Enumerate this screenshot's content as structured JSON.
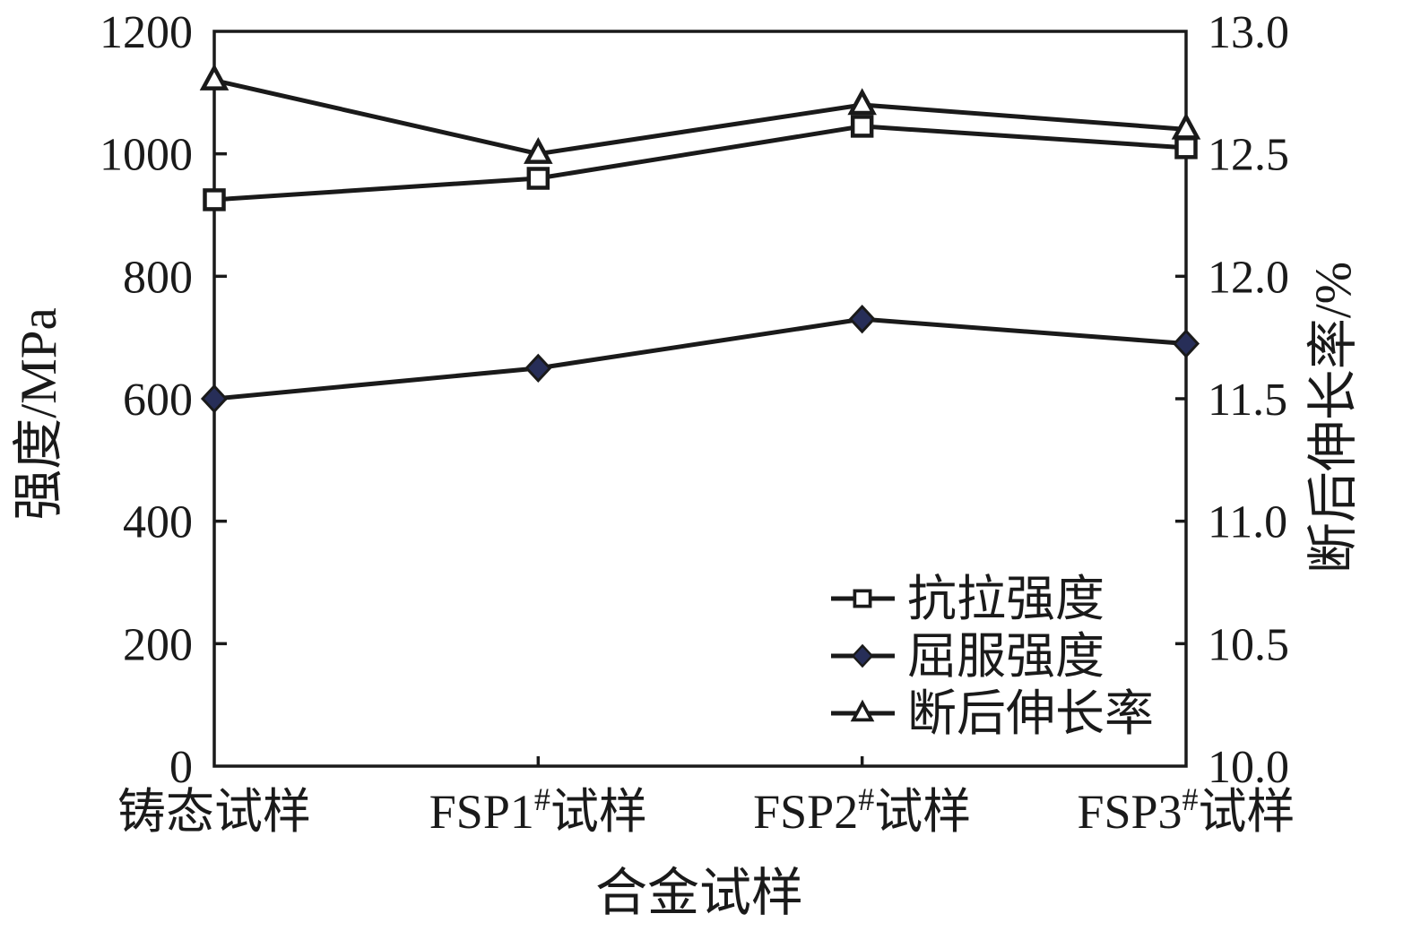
{
  "chart_data": {
    "type": "line",
    "categories": [
      "铸态试样",
      "FSP1#试样",
      "FSP2#试样",
      "FSP3#试样"
    ],
    "xlabel": "合金试样",
    "ylabel_left": "强度/MPa",
    "ylabel_right": "断后伸长率/%",
    "left_axis": {
      "min": 0,
      "max": 1200,
      "step": 200,
      "tick_labels": [
        "0",
        "200",
        "400",
        "600",
        "800",
        "1000",
        "1200"
      ]
    },
    "right_axis": {
      "min": 10.0,
      "max": 13.0,
      "step": 0.5,
      "tick_labels": [
        "10.0",
        "10.5",
        "11.0",
        "11.5",
        "12.0",
        "12.5",
        "13.0"
      ]
    },
    "series": [
      {
        "name": "抗拉强度",
        "axis": "left",
        "marker": "square-open",
        "unit": "MPa",
        "values": [
          925,
          960,
          1045,
          1010
        ]
      },
      {
        "name": "屈服强度",
        "axis": "left",
        "marker": "diamond-filled",
        "unit": "MPa",
        "values": [
          600,
          650,
          730,
          690
        ]
      },
      {
        "name": "断后伸长率",
        "axis": "right",
        "marker": "triangle-open",
        "unit": "%",
        "values": [
          12.8,
          12.5,
          12.7,
          12.6
        ]
      }
    ],
    "grid": false,
    "legend_position": "lower-right-inside"
  },
  "colors": {
    "line": "#1a1a1a",
    "text": "#1a1a1a",
    "diamond_fill": "#272e58",
    "open_marker_fill": "#ffffff",
    "background": "#ffffff"
  }
}
